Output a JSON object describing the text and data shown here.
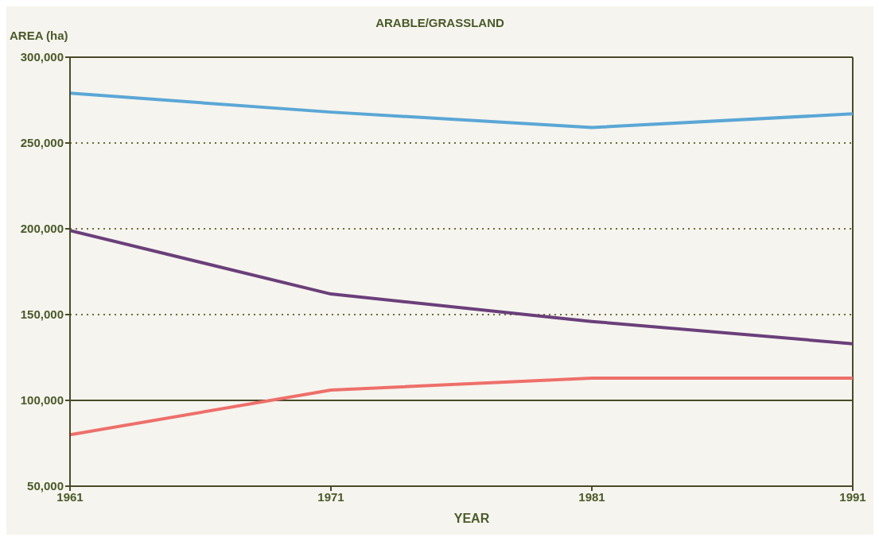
{
  "chart_data": {
    "type": "line",
    "title": "ARABLE/GRASSLAND",
    "xlabel": "YEAR",
    "ylabel": "AREA (ha)",
    "x": [
      1961,
      1971,
      1981,
      1991
    ],
    "series": [
      {
        "color": "#5aa7d6",
        "values": [
          279000,
          268000,
          259000,
          267000
        ]
      },
      {
        "color": "#6a3f7a",
        "values": [
          199000,
          162000,
          146000,
          133000
        ]
      },
      {
        "color": "#ee6f6a",
        "values": [
          80000,
          106000,
          113000,
          113000
        ]
      }
    ],
    "xlim": [
      1961,
      1991
    ],
    "xticks": [
      1961,
      1971,
      1981,
      1991
    ],
    "ylim": [
      50000,
      300000
    ],
    "yticks": [
      {
        "value": 50000,
        "label": "50,000"
      },
      {
        "value": 100000,
        "label": "100,000"
      },
      {
        "value": 150000,
        "label": "150,000"
      },
      {
        "value": 200000,
        "label": "200,000"
      },
      {
        "value": 250000,
        "label": "250,000"
      },
      {
        "value": 300000,
        "label": "300,000"
      }
    ],
    "ref_lines": [
      {
        "axis": "y",
        "value": 100000,
        "color": "#4a4a2a",
        "line_style": "solid"
      }
    ],
    "grid": "y",
    "marker": "none",
    "line_style": "solid"
  }
}
